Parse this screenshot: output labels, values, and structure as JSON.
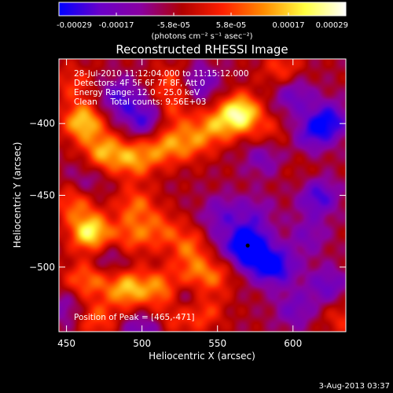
{
  "chart_data": {
    "type": "heatmap",
    "title": "Reconstructed RHESSI Image",
    "xlabel": "Heliocentric X (arcsec)",
    "ylabel": "Heliocentric Y (arcsec)",
    "xlim": [
      445,
      635
    ],
    "ylim": [
      -545,
      -355
    ],
    "xticks": [
      450,
      500,
      550,
      600
    ],
    "yticks": [
      -400,
      -450,
      -500
    ],
    "colorbar": {
      "range": [
        -0.00029,
        0.00029
      ],
      "tick_labels": [
        "-0.00029",
        "-0.00017",
        "-5.8e-05",
        "5.8e-05",
        "0.00017",
        "0.00029"
      ],
      "unit_label": "(photons cm⁻² s⁻¹ asec⁻²)",
      "colors": [
        "#0000ff",
        "#6a00c8",
        "#8a00a0",
        "#b00000",
        "#ff2000",
        "#ff8c00",
        "#ffff40",
        "#ffffff"
      ]
    },
    "info_lines": [
      "28-Jul-2010 11:12:04.000 to 11:15:12.000",
      "Detectors: 4F 5F 6F 7F 8F, Att 0",
      "Energy Range: 12.0 - 25.0 keV",
      "Clean     Total counts: 9.56E+03"
    ],
    "peak_label": "Position of Peak = [465,-471]",
    "minimum_marker": {
      "x": 570,
      "y": -485
    },
    "blobs": [
      {
        "x": 461,
        "y": -399,
        "v": 0.00024
      },
      {
        "x": 475,
        "y": -420,
        "v": 0.0002
      },
      {
        "x": 455,
        "y": -372,
        "v": 0.0001
      },
      {
        "x": 495,
        "y": -425,
        "v": 0.00018
      },
      {
        "x": 514,
        "y": -416,
        "v": 0.00016
      },
      {
        "x": 532,
        "y": -413,
        "v": 0.00014
      },
      {
        "x": 520,
        "y": -372,
        "v": 0.00012
      },
      {
        "x": 520,
        "y": -392,
        "v": 0.0001
      },
      {
        "x": 565,
        "y": -393,
        "v": 0.0003
      },
      {
        "x": 548,
        "y": -402,
        "v": 0.00016
      },
      {
        "x": 593,
        "y": -363,
        "v": 0.00012
      },
      {
        "x": 585,
        "y": -408,
        "v": 9e-05
      },
      {
        "x": 496,
        "y": -457,
        "v": 0.00014
      },
      {
        "x": 513,
        "y": -474,
        "v": 0.00012
      },
      {
        "x": 455,
        "y": -455,
        "v": 0.00014
      },
      {
        "x": 466,
        "y": -476,
        "v": 0.00028
      },
      {
        "x": 493,
        "y": -479,
        "v": 0.00013
      },
      {
        "x": 533,
        "y": -486,
        "v": 0.00015
      },
      {
        "x": 468,
        "y": -508,
        "v": 0.00011
      },
      {
        "x": 470,
        "y": -536,
        "v": 0.00013
      },
      {
        "x": 490,
        "y": -515,
        "v": 0.00022
      },
      {
        "x": 512,
        "y": -515,
        "v": 0.00017
      },
      {
        "x": 523,
        "y": -535,
        "v": 0.0001
      },
      {
        "x": 534,
        "y": -506,
        "v": 0.00012
      },
      {
        "x": 549,
        "y": -506,
        "v": 0.00011
      },
      {
        "x": 541,
        "y": -531,
        "v": 0.00012
      },
      {
        "x": 457,
        "y": -510,
        "v": 8e-05
      },
      {
        "x": 632,
        "y": -535,
        "v": 9e-05
      },
      {
        "x": 605,
        "y": -432,
        "v": 4e-05
      },
      {
        "x": 570,
        "y": -485,
        "v": -0.0003
      },
      {
        "x": 580,
        "y": -498,
        "v": -0.00014
      },
      {
        "x": 617,
        "y": -451,
        "v": -0.00018
      },
      {
        "x": 624,
        "y": -398,
        "v": -0.0002
      },
      {
        "x": 591,
        "y": -500,
        "v": -0.00016
      },
      {
        "x": 553,
        "y": -463,
        "v": -0.00012
      },
      {
        "x": 575,
        "y": -463,
        "v": -0.0001
      },
      {
        "x": 601,
        "y": -530,
        "v": -0.00012
      },
      {
        "x": 529,
        "y": -521,
        "v": -0.00012
      },
      {
        "x": 610,
        "y": -478,
        "v": -0.0001
      },
      {
        "x": 485,
        "y": -382,
        "v": -0.00016
      },
      {
        "x": 502,
        "y": -397,
        "v": -0.00018
      },
      {
        "x": 538,
        "y": -372,
        "v": -0.00014
      },
      {
        "x": 600,
        "y": -380,
        "v": -0.00014
      },
      {
        "x": 612,
        "y": -408,
        "v": -0.00014
      },
      {
        "x": 581,
        "y": -423,
        "v": -0.00012
      },
      {
        "x": 623,
        "y": -513,
        "v": -0.00014
      },
      {
        "x": 548,
        "y": -484,
        "v": -6e-05
      },
      {
        "x": 478,
        "y": -495,
        "v": -0.0001
      },
      {
        "x": 463,
        "y": -440,
        "v": -8e-05
      },
      {
        "x": 450,
        "y": -528,
        "v": -0.0001
      },
      {
        "x": 500,
        "y": -545,
        "v": -0.00012
      }
    ]
  },
  "footer": {
    "date": "3-Aug-2013 03:37"
  }
}
